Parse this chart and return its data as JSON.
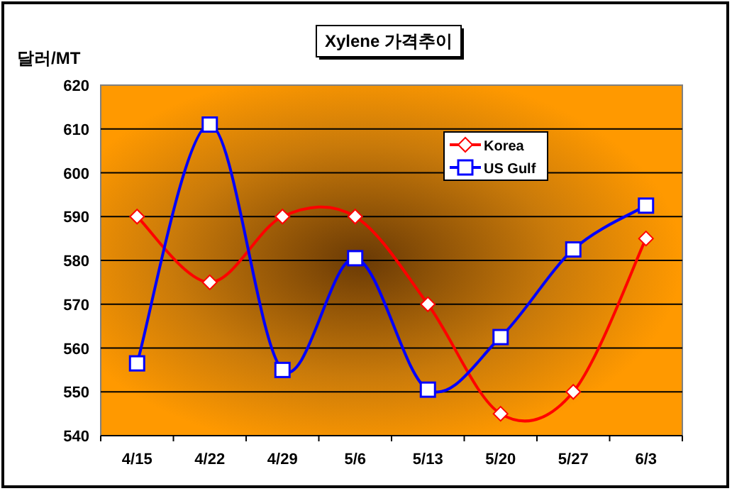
{
  "chart_data": {
    "type": "line",
    "title": "Xylene 가격추이",
    "ylabel": "달러/MT",
    "categories": [
      "4/15",
      "4/22",
      "4/29",
      "5/6",
      "5/13",
      "5/20",
      "5/27",
      "6/3"
    ],
    "series": [
      {
        "name": "Korea",
        "color": "#ff0000",
        "marker": "diamond",
        "values": [
          590,
          575,
          590,
          590,
          570,
          545,
          550,
          585
        ]
      },
      {
        "name": "US Gulf",
        "color": "#0000ff",
        "marker": "square",
        "values": [
          556.5,
          611,
          555,
          580.5,
          550.5,
          562.5,
          582.5,
          592.5
        ]
      }
    ],
    "ylim": [
      540,
      620
    ],
    "yticks": [
      540,
      550,
      560,
      570,
      580,
      590,
      600,
      610,
      620
    ],
    "grid": "y",
    "legend": "top right",
    "line_style": "solid"
  }
}
